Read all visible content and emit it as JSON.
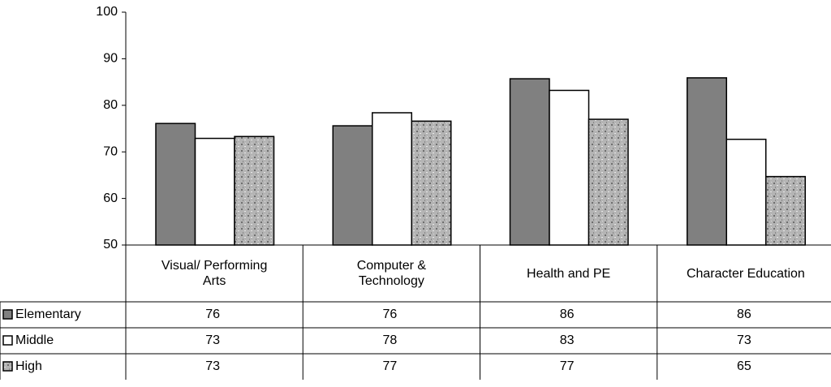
{
  "chart_data": {
    "type": "bar",
    "categories": [
      "Visual/ Performing Arts",
      "Computer & Technology",
      "Health and PE",
      "Character Education"
    ],
    "series": [
      {
        "name": "Elementary",
        "color": "#808080",
        "values": [
          76.1,
          75.6,
          85.7,
          85.9
        ],
        "value_labels": [
          "76",
          "76",
          "86",
          "86"
        ]
      },
      {
        "name": "Middle",
        "color": "#ffffff",
        "values": [
          72.9,
          78.4,
          83.2,
          72.7
        ],
        "value_labels": [
          "73",
          "78",
          "83",
          "73"
        ]
      },
      {
        "name": "High",
        "color": "#b4b4b4",
        "values": [
          73.3,
          76.6,
          77.0,
          64.7
        ],
        "value_labels": [
          "73",
          "77",
          "77",
          "65"
        ]
      }
    ],
    "ylim": [
      50,
      100
    ],
    "yticks": [
      50,
      60,
      70,
      80,
      90,
      100
    ],
    "grid": false
  }
}
